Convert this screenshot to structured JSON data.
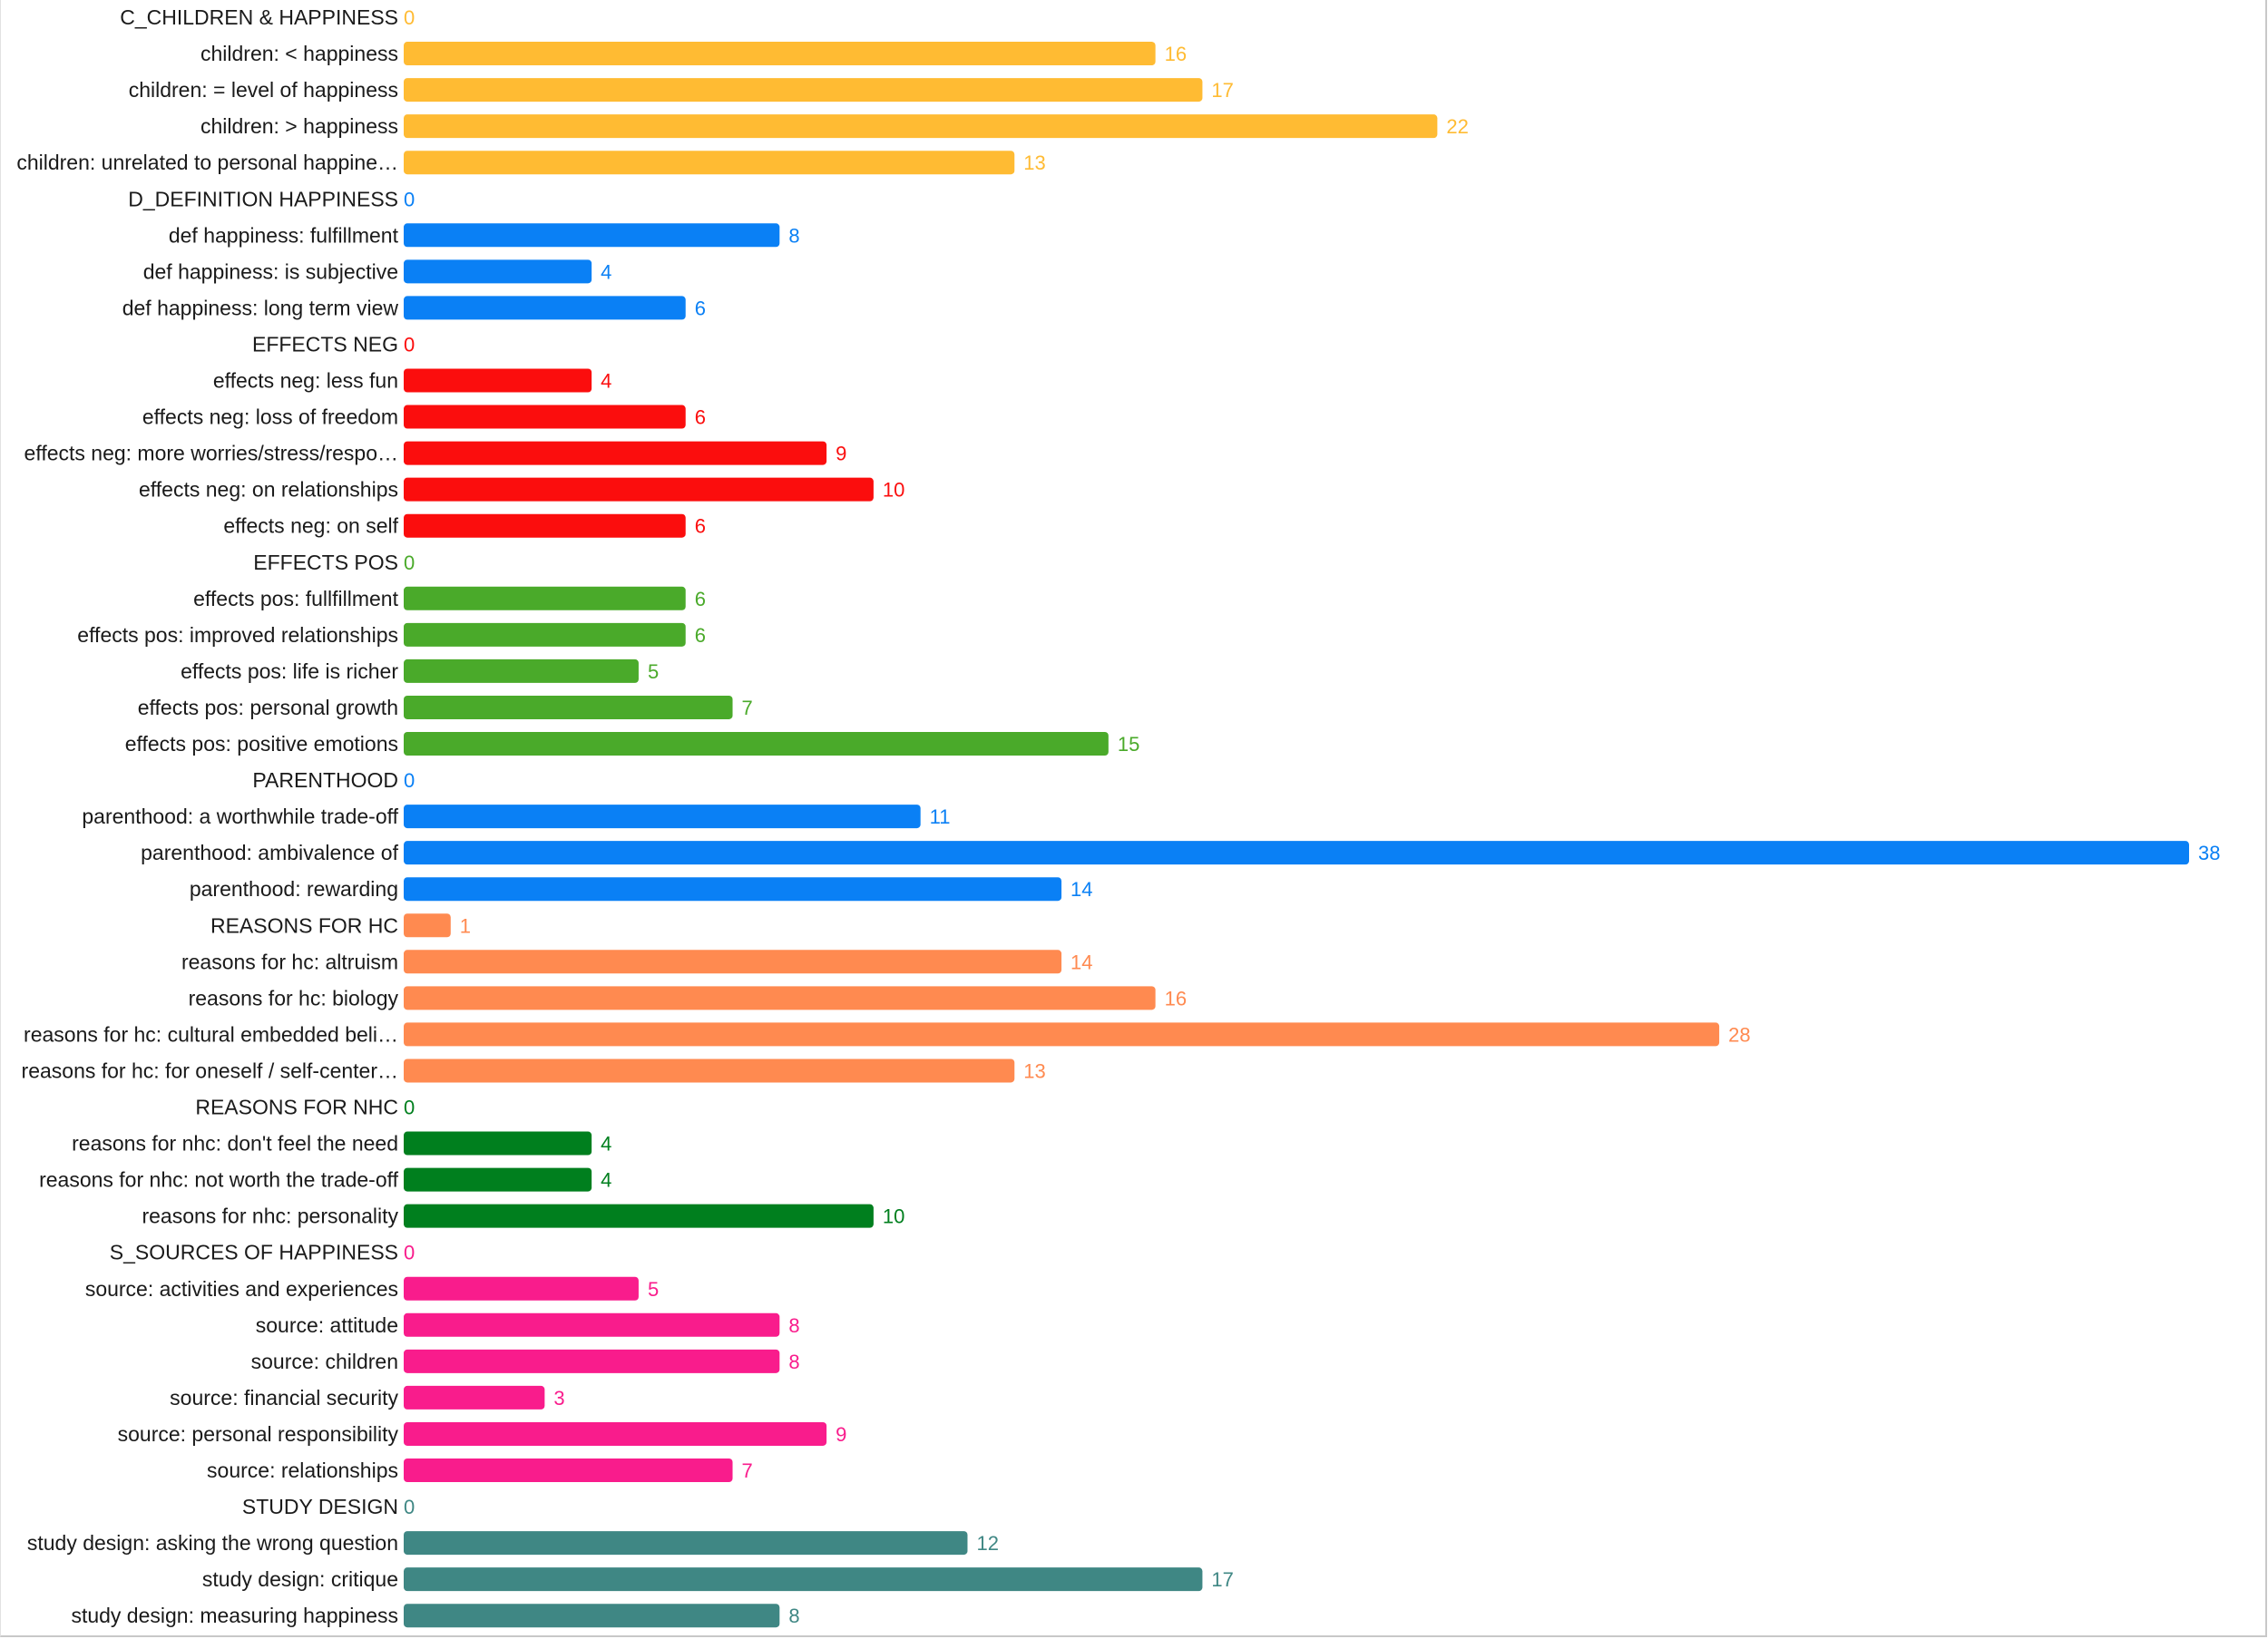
{
  "chart_data": {
    "type": "bar",
    "orientation": "horizontal",
    "title": "",
    "xlabel": "",
    "ylabel": "",
    "xlim": [
      0,
      38
    ],
    "grid": false,
    "legend": "none",
    "categories": [
      "C_CHILDREN & HAPPINESS",
      "children: < happiness",
      "children: = level of happiness",
      "children: > happiness",
      "children: unrelated to personal happine…",
      "D_DEFINITION HAPPINESS",
      "def happiness: fulfillment",
      "def happiness: is subjective",
      "def happiness: long term view",
      "EFFECTS NEG",
      "effects neg: less fun",
      "effects neg: loss of freedom",
      "effects neg: more worries/stress/respo…",
      "effects neg: on relationships",
      "effects neg: on self",
      "EFFECTS POS",
      "effects pos: fullfillment",
      "effects pos: improved relationships",
      "effects pos: life is richer",
      "effects pos: personal growth",
      "effects pos: positive emotions",
      "PARENTHOOD",
      "parenthood: a worthwhile trade-off",
      "parenthood: ambivalence of",
      "parenthood: rewarding",
      "REASONS FOR HC",
      "reasons for hc: altruism",
      "reasons for hc: biology",
      "reasons for hc: cultural embedded beli…",
      "reasons for hc: for oneself / self-center…",
      "REASONS FOR NHC",
      "reasons for nhc: don't feel the need",
      "reasons for nhc: not worth the trade-off",
      "reasons for nhc: personality",
      "S_SOURCES OF HAPPINESS",
      "source: activities and experiences",
      "source: attitude",
      "source: children",
      "source: financial security",
      "source: personal responsibility",
      "source: relationships",
      "STUDY DESIGN",
      "study design: asking the wrong question",
      "study design: critique",
      "study design: measuring happiness"
    ],
    "values": [
      0,
      16,
      17,
      22,
      13,
      0,
      8,
      4,
      6,
      0,
      4,
      6,
      9,
      10,
      6,
      0,
      6,
      6,
      5,
      7,
      15,
      0,
      11,
      38,
      14,
      1,
      14,
      16,
      28,
      13,
      0,
      4,
      4,
      10,
      0,
      5,
      8,
      8,
      3,
      9,
      7,
      0,
      12,
      17,
      8
    ],
    "groups": [
      0,
      0,
      0,
      0,
      0,
      1,
      1,
      1,
      1,
      2,
      2,
      2,
      2,
      2,
      2,
      3,
      3,
      3,
      3,
      3,
      3,
      4,
      4,
      4,
      4,
      5,
      5,
      5,
      5,
      5,
      6,
      6,
      6,
      6,
      7,
      7,
      7,
      7,
      7,
      7,
      7,
      8,
      8,
      8,
      8
    ],
    "group_colors": [
      "#ffbb33",
      "#0a80f5",
      "#fb0d0d",
      "#4aaa2a",
      "#0a80f5",
      "#ff8a50",
      "#007f1e",
      "#f91c8c",
      "#3f8784"
    ]
  }
}
